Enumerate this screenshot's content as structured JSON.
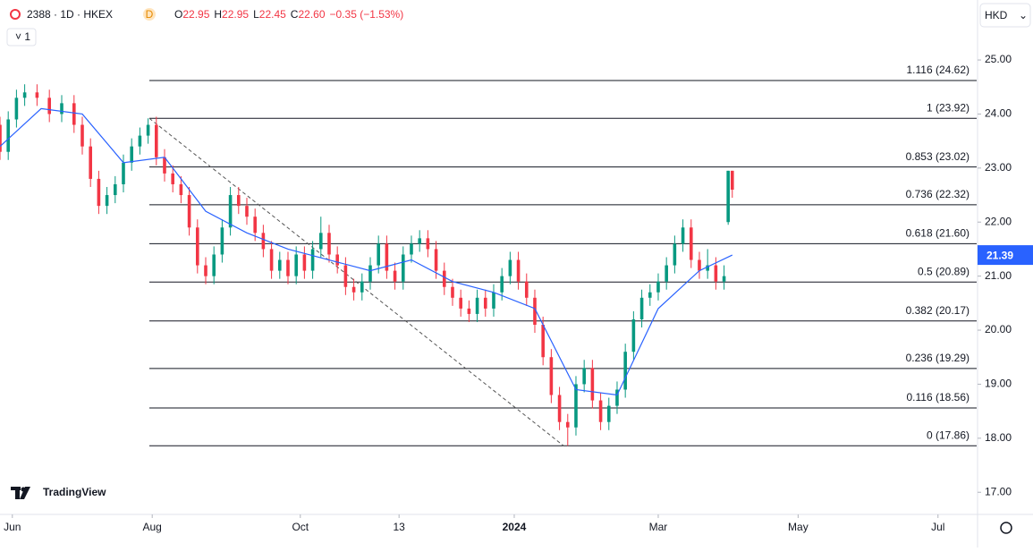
{
  "header": {
    "symbol": "2388 · 1D · HKEX",
    "badge": "D",
    "ohlc": [
      {
        "key": "O",
        "value": "22.95"
      },
      {
        "key": "H",
        "value": "22.95"
      },
      {
        "key": "L",
        "value": "22.45"
      },
      {
        "key": "C",
        "value": "22.60"
      }
    ],
    "change": "−0.35 (−1.53%)",
    "indicator": "1",
    "currency": "HKD",
    "logo": "TradingView"
  },
  "chart_data": {
    "type": "candlestick",
    "up_color": "#089981",
    "down_color": "#f23645",
    "xlim": [
      0,
      237.4
    ],
    "ylim": [
      16.59,
      26.11
    ],
    "xticks": [
      {
        "value": 3,
        "label": "Jun"
      },
      {
        "value": 37,
        "label": "Aug"
      },
      {
        "value": 73,
        "label": "Oct"
      },
      {
        "value": 97,
        "label": "13"
      },
      {
        "value": 125,
        "label": "2024"
      },
      {
        "value": 160,
        "label": "Mar"
      },
      {
        "value": 194,
        "label": "May"
      },
      {
        "value": 228,
        "label": "Jul"
      }
    ],
    "yticks": [
      {
        "value": 17,
        "label": "17.00"
      },
      {
        "value": 18,
        "label": "18.00"
      },
      {
        "value": 19,
        "label": "19.00"
      },
      {
        "value": 20,
        "label": "20.00"
      },
      {
        "value": 21,
        "label": "21.00"
      },
      {
        "value": 22,
        "label": "22.00"
      },
      {
        "value": 23,
        "label": "23.00"
      },
      {
        "value": 24,
        "label": "24.00"
      },
      {
        "value": 25,
        "label": "25.00"
      }
    ],
    "x": [
      0,
      2,
      4,
      6,
      9,
      12,
      15,
      18,
      20,
      22,
      24,
      26,
      28,
      30,
      32,
      34,
      36,
      38,
      40,
      42,
      44,
      46,
      48,
      50,
      52,
      54,
      56,
      58,
      60,
      62,
      64,
      66,
      68,
      70,
      72,
      74,
      76,
      78,
      80,
      82,
      84,
      86,
      88,
      90,
      92,
      94,
      96,
      98,
      100,
      102,
      104,
      106,
      108,
      110,
      112,
      114,
      116,
      118,
      120,
      122,
      124,
      126,
      128,
      130,
      132,
      134,
      136,
      138,
      140,
      142,
      144,
      146,
      148,
      150,
      152,
      154,
      156,
      158,
      160,
      162,
      164,
      166,
      168,
      170,
      172,
      174,
      176,
      177,
      178
    ],
    "open": [
      23.8,
      23.3,
      23.9,
      24.3,
      24.4,
      24.3,
      24.0,
      24.2,
      23.8,
      23.4,
      22.8,
      22.3,
      22.5,
      22.7,
      23.1,
      23.4,
      23.6,
      23.8,
      23.2,
      22.9,
      22.7,
      22.5,
      21.9,
      21.2,
      21.0,
      21.4,
      21.9,
      22.5,
      22.3,
      22.1,
      21.8,
      21.5,
      21.1,
      21.3,
      21.0,
      21.4,
      21.1,
      21.5,
      21.8,
      21.4,
      21.2,
      20.8,
      20.7,
      20.9,
      21.2,
      21.6,
      21.1,
      20.9,
      21.4,
      21.6,
      21.7,
      21.5,
      21.1,
      20.8,
      20.6,
      20.4,
      20.3,
      20.6,
      20.4,
      20.7,
      21.0,
      21.3,
      20.9,
      20.6,
      20.1,
      19.5,
      18.8,
      18.3,
      18.2,
      19.0,
      19.3,
      18.7,
      18.3,
      18.6,
      18.9,
      19.6,
      20.2,
      20.6,
      20.7,
      20.9,
      21.2,
      21.6,
      21.9,
      21.3,
      21.1,
      21.2,
      20.9,
      22.0,
      22.95
    ],
    "high": [
      23.95,
      24.05,
      24.45,
      24.55,
      24.55,
      24.45,
      24.35,
      24.35,
      23.95,
      23.55,
      22.95,
      22.65,
      22.85,
      23.25,
      23.55,
      23.75,
      23.92,
      23.95,
      23.35,
      23.05,
      22.85,
      22.65,
      22.05,
      21.35,
      21.55,
      22.05,
      22.65,
      22.65,
      22.45,
      22.25,
      21.95,
      21.65,
      21.45,
      21.45,
      21.55,
      21.55,
      21.65,
      22.1,
      21.95,
      21.55,
      21.35,
      20.95,
      21.05,
      21.35,
      21.75,
      21.75,
      21.25,
      21.55,
      21.75,
      21.85,
      21.85,
      21.65,
      21.25,
      20.95,
      20.75,
      20.55,
      20.75,
      20.75,
      20.85,
      21.15,
      21.45,
      21.45,
      21.05,
      20.75,
      20.25,
      19.65,
      18.95,
      18.45,
      19.15,
      19.45,
      19.45,
      18.85,
      18.75,
      19.05,
      19.75,
      20.35,
      20.75,
      20.85,
      21.05,
      21.35,
      21.75,
      22.05,
      22.05,
      21.45,
      21.5,
      21.35,
      21.2,
      22.95,
      22.95
    ],
    "low": [
      23.15,
      23.15,
      23.75,
      24.15,
      24.15,
      23.85,
      23.85,
      23.65,
      23.25,
      22.65,
      22.15,
      22.15,
      22.35,
      22.55,
      22.95,
      23.25,
      23.45,
      23.05,
      22.75,
      22.55,
      22.35,
      21.75,
      21.05,
      20.85,
      20.85,
      21.25,
      21.75,
      22.15,
      21.95,
      21.65,
      21.35,
      20.95,
      20.95,
      20.85,
      20.85,
      20.95,
      20.95,
      21.35,
      21.25,
      21.05,
      20.65,
      20.55,
      20.55,
      20.75,
      21.05,
      20.95,
      20.75,
      20.75,
      21.25,
      21.45,
      21.35,
      20.95,
      20.65,
      20.45,
      20.25,
      20.15,
      20.15,
      20.25,
      20.25,
      20.55,
      20.85,
      20.75,
      20.45,
      19.95,
      19.35,
      18.65,
      18.15,
      17.86,
      18.05,
      18.85,
      18.55,
      18.15,
      18.15,
      18.45,
      18.75,
      19.45,
      20.05,
      20.45,
      20.55,
      20.75,
      21.05,
      21.45,
      21.15,
      20.95,
      20.95,
      20.75,
      20.75,
      21.95,
      22.45
    ],
    "close": [
      23.3,
      23.9,
      24.3,
      24.4,
      24.3,
      24.0,
      24.2,
      23.8,
      23.4,
      22.8,
      22.3,
      22.5,
      22.7,
      23.1,
      23.4,
      23.6,
      23.8,
      23.2,
      22.9,
      22.7,
      22.5,
      21.9,
      21.2,
      21.0,
      21.4,
      21.9,
      22.5,
      22.3,
      22.1,
      21.8,
      21.5,
      21.1,
      21.3,
      21.0,
      21.4,
      21.1,
      21.5,
      21.8,
      21.4,
      21.2,
      20.8,
      20.7,
      20.9,
      21.2,
      21.6,
      21.1,
      20.9,
      21.4,
      21.6,
      21.7,
      21.5,
      21.1,
      20.8,
      20.6,
      20.4,
      20.3,
      20.6,
      20.4,
      20.7,
      21.0,
      21.3,
      20.9,
      20.6,
      20.1,
      19.5,
      18.8,
      18.3,
      18.2,
      19.0,
      19.3,
      18.7,
      18.3,
      18.6,
      18.9,
      19.6,
      20.2,
      20.6,
      20.7,
      20.9,
      21.2,
      21.6,
      21.9,
      21.3,
      21.1,
      21.2,
      20.9,
      21.0,
      22.95,
      22.6
    ],
    "ma": {
      "color": "#2962ff",
      "x": [
        0,
        10,
        20,
        30,
        40,
        50,
        60,
        70,
        80,
        90,
        100,
        110,
        120,
        130,
        140,
        150,
        160,
        170,
        178
      ],
      "values": [
        23.4,
        24.1,
        24.0,
        23.1,
        23.2,
        22.2,
        21.8,
        21.5,
        21.3,
        21.1,
        21.3,
        20.9,
        20.7,
        20.4,
        18.9,
        18.8,
        20.4,
        21.1,
        21.39
      ]
    },
    "fib_levels": [
      {
        "label": "1.116 (24.62)",
        "value": 24.62
      },
      {
        "label": "1 (23.92)",
        "value": 23.92
      },
      {
        "label": "0.853 (23.02)",
        "value": 23.02
      },
      {
        "label": "0.736 (22.32)",
        "value": 22.32
      },
      {
        "label": "0.618 (21.60)",
        "value": 21.6
      },
      {
        "label": "0.5 (20.89)",
        "value": 20.89
      },
      {
        "label": "0.382 (20.17)",
        "value": 20.17
      },
      {
        "label": "0.236 (19.29)",
        "value": 19.29
      },
      {
        "label": "0.116 (18.56)",
        "value": 18.56
      },
      {
        "label": "0 (17.86)",
        "value": 17.86
      }
    ],
    "fib_start": 36.3,
    "trendline": {
      "x": [
        36.3,
        137
      ],
      "y": [
        23.92,
        17.86
      ]
    }
  }
}
